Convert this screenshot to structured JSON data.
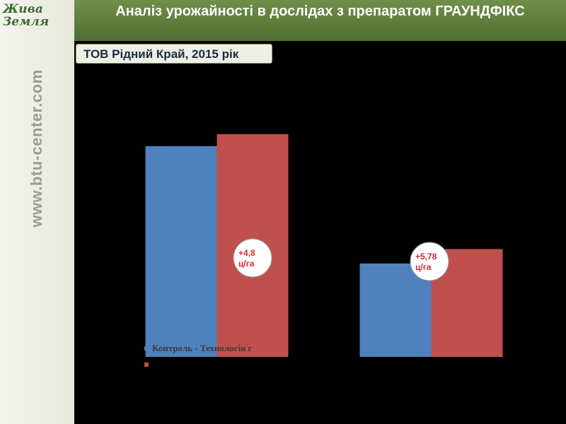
{
  "sidebar": {
    "url": "www.btu-center.com",
    "logo": "Жива Земля"
  },
  "header": {
    "title": "Аналіз урожайності в дослідах з препаратом ГРАУНДФІКС",
    "subtitle": "ТОВ Рідний Край, 2015 рік"
  },
  "chart_data": {
    "type": "bar",
    "categories": [
      null,
      null
    ],
    "series": [
      {
        "name": "Контроль - Технологія г",
        "color": "#4f81bd",
        "values": [
          84.4,
          37.4
        ]
      },
      {
        "color": "#c0504d",
        "values": [
          89.2,
          43.18
        ]
      }
    ],
    "ylim": [
      0,
      120
    ],
    "annotations": [
      {
        "lines": [
          "+4,8",
          "ц/га"
        ]
      },
      {
        "lines": [
          "+5,78",
          "ц/га"
        ]
      }
    ]
  }
}
